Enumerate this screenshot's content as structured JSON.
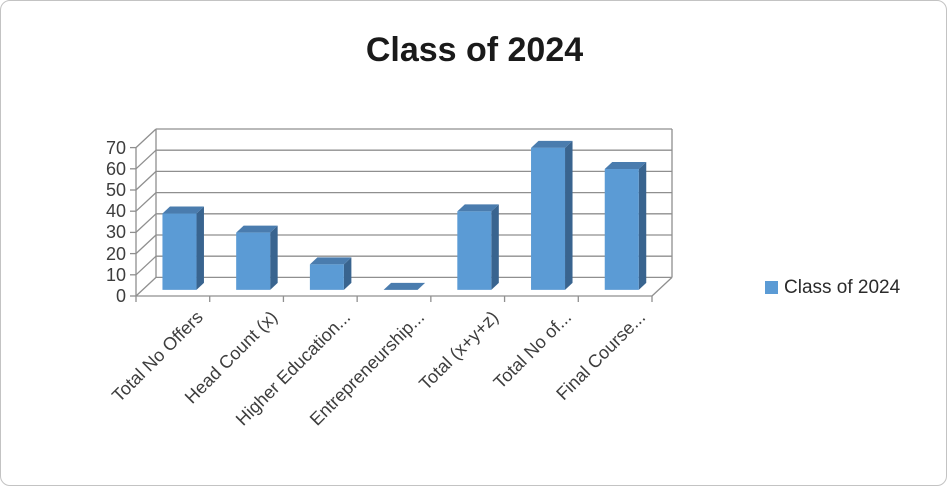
{
  "panel": {
    "background": "#ffffff",
    "border_color": "#c3c3c3"
  },
  "chart_data": {
    "type": "bar",
    "style": "3d-column",
    "title": "Class of 2024",
    "series_name": "Class of 2024",
    "categories": [
      "Total No Offers",
      "Head Count (x)",
      "Higher Education...",
      "Entrepreneurship...",
      "Total (x+y+z)",
      "Total No of...",
      "Final Course..."
    ],
    "values": [
      36,
      27,
      12,
      0,
      37,
      67,
      57
    ],
    "xlabel": "",
    "ylabel": "",
    "ylim": [
      0,
      70
    ],
    "ytick_step": 10,
    "yticks": [
      0,
      10,
      20,
      30,
      40,
      50,
      60,
      70
    ],
    "grid": true,
    "legend_position": "right",
    "colors": {
      "bar_front": "#5B9BD5",
      "bar_top": "#4a7cae",
      "bar_side": "#39648f",
      "gridline": "#8f8f8f",
      "axis_line": "#8f8f8f",
      "axis_text": "#3d3d3d",
      "title_text": "#1a1a1a"
    }
  }
}
